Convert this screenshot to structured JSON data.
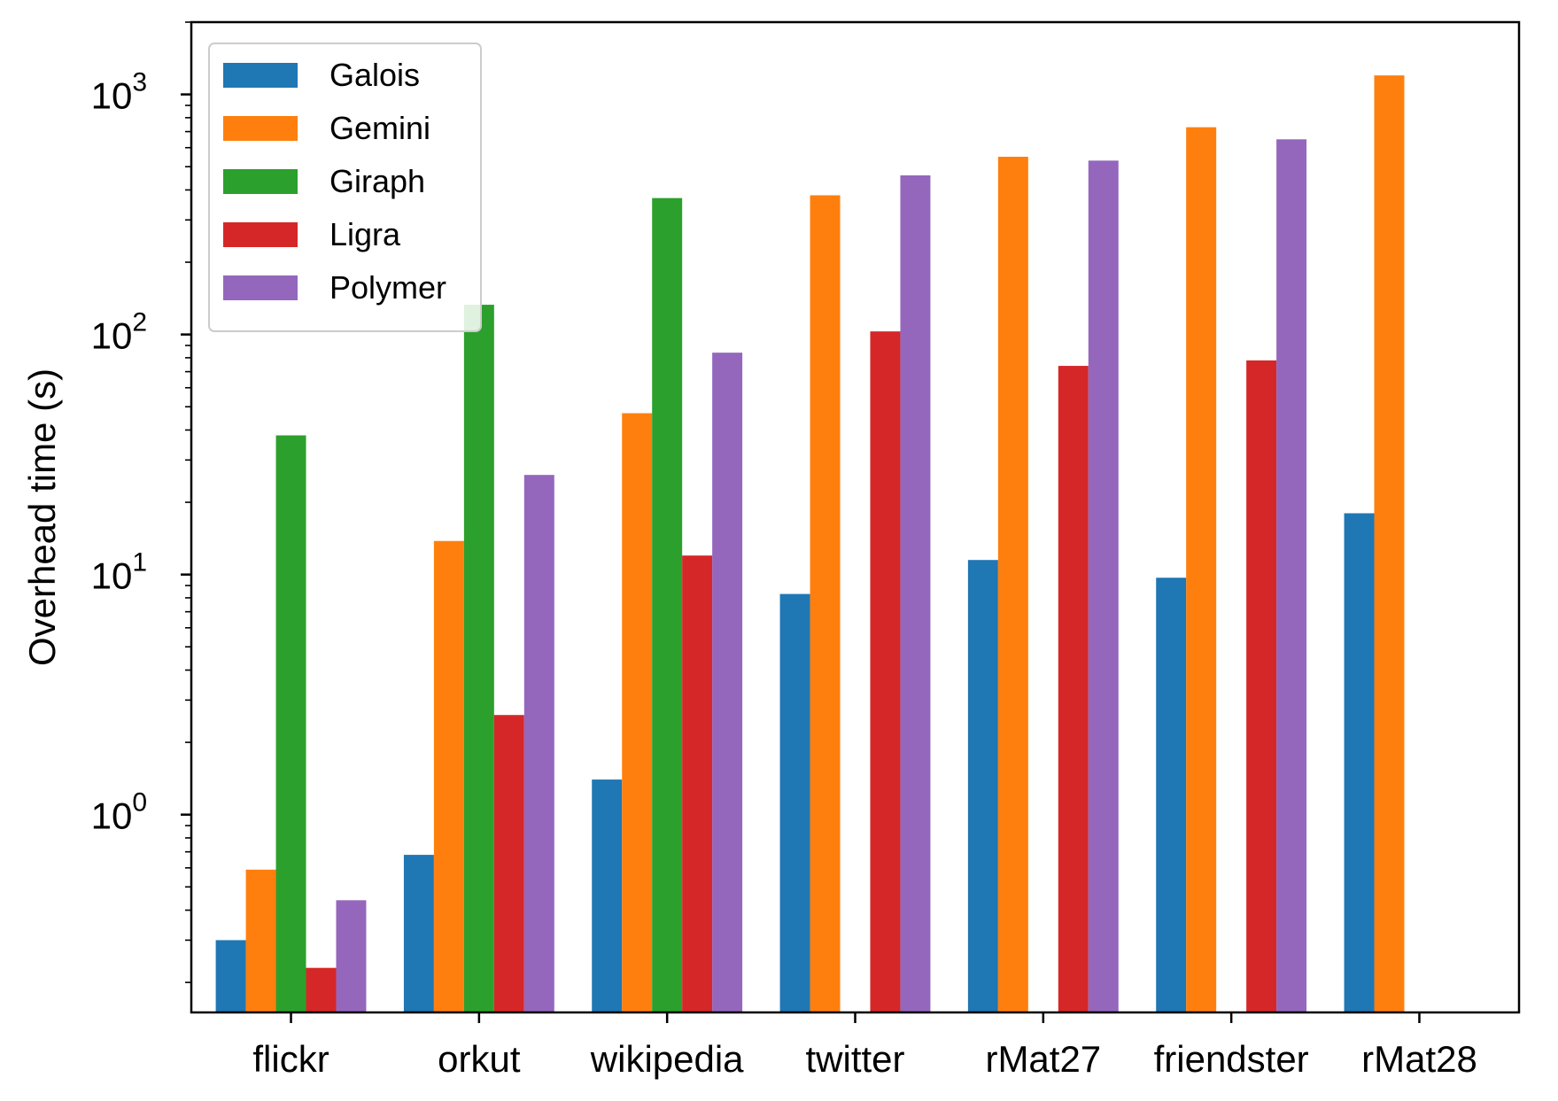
{
  "chart_data": {
    "type": "bar",
    "title": "",
    "xlabel": "",
    "ylabel": "Overhead time (s)",
    "yscale": "log",
    "ylim": [
      0.15,
      2000
    ],
    "yticks": [
      {
        "value": 1,
        "base": "10",
        "exp": "0"
      },
      {
        "value": 10,
        "base": "10",
        "exp": "1"
      },
      {
        "value": 100,
        "base": "10",
        "exp": "2"
      },
      {
        "value": 1000,
        "base": "10",
        "exp": "3"
      }
    ],
    "grid": false,
    "legend_position": "top-left",
    "categories": [
      "flickr",
      "orkut",
      "wikipedia",
      "twitter",
      "rMat27",
      "friendster",
      "rMat28"
    ],
    "series": [
      {
        "name": "Galois",
        "color": "#1f77b4",
        "values": [
          0.3,
          0.68,
          1.4,
          8.3,
          11.5,
          9.7,
          18
        ]
      },
      {
        "name": "Gemini",
        "color": "#ff7f0e",
        "values": [
          0.59,
          13.8,
          47,
          380,
          550,
          730,
          1200
        ]
      },
      {
        "name": "Giraph",
        "color": "#2ca02c",
        "values": [
          38,
          133,
          370,
          null,
          null,
          null,
          null
        ]
      },
      {
        "name": "Ligra",
        "color": "#d62728",
        "values": [
          0.23,
          2.6,
          12,
          103,
          74,
          78,
          null
        ]
      },
      {
        "name": "Polymer",
        "color": "#9467bd",
        "values": [
          0.44,
          26,
          84,
          460,
          530,
          650,
          null
        ]
      }
    ]
  }
}
